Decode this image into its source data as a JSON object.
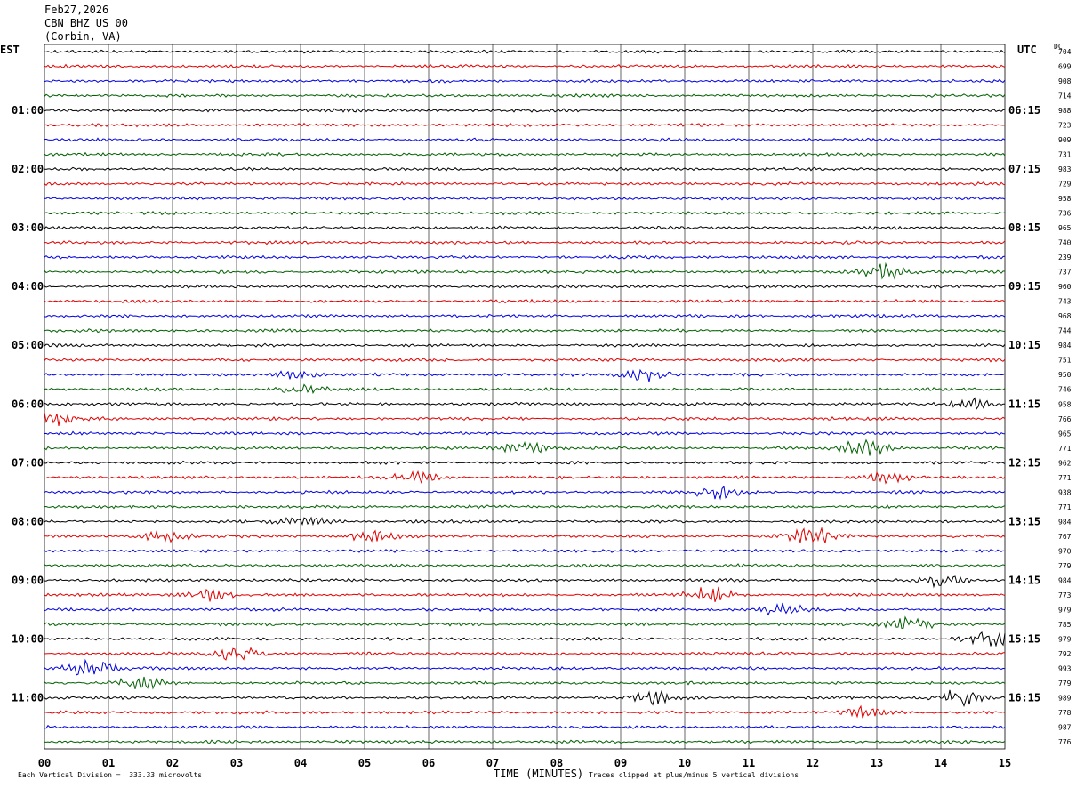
{
  "header": {
    "date": "Feb27,2026",
    "station": "CBN BHZ US 00",
    "location": "(Corbin, VA)"
  },
  "left_axis_label": "EST",
  "right_axis_label": "UTC",
  "dc_label": "DC",
  "footer": {
    "left_note": "Each Vertical Division =  333.33 microvolts",
    "xlabel": "TIME (MINUTES)",
    "right_note": "Traces clipped at plus/minus 5 vertical divisions"
  },
  "colors": {
    "trace_cycle": [
      "#000000",
      "#e00000",
      "#0000e0",
      "#006000"
    ],
    "grid": "#000000"
  },
  "chart_data": {
    "type": "line",
    "title": "",
    "xlabel": "TIME (MINUTES)",
    "xlim": [
      0,
      15
    ],
    "x_ticks": [
      "00",
      "01",
      "02",
      "03",
      "04",
      "05",
      "06",
      "07",
      "08",
      "09",
      "10",
      "11",
      "12",
      "13",
      "14",
      "15"
    ],
    "rows": 48,
    "minutes_per_row": 15,
    "left_hour_labels": [
      "01:00",
      "02:00",
      "03:00",
      "04:00",
      "05:00",
      "06:00",
      "07:00",
      "08:00",
      "09:00",
      "10:00",
      "11:00"
    ],
    "right_hour_labels": [
      "06:15",
      "07:15",
      "08:15",
      "09:15",
      "10:15",
      "11:15",
      "12:15",
      "13:15",
      "14:15",
      "15:15",
      "16:15"
    ],
    "dc_offsets": [
      "704",
      "699",
      "908",
      "714",
      "988",
      "723",
      "909",
      "731",
      "983",
      "729",
      "958",
      "736",
      "965",
      "740",
      "239",
      "737",
      "960",
      "743",
      "968",
      "744",
      "984",
      "751",
      "950",
      "746",
      "958",
      "766",
      "965",
      "771",
      "962",
      "771",
      "938",
      "771",
      "984",
      "767",
      "970",
      "779",
      "984",
      "773",
      "979",
      "785",
      "979",
      "792",
      "993",
      "779",
      "989",
      "778",
      "987",
      "776"
    ],
    "events": [
      {
        "row": 15,
        "minute": 13.1,
        "amp": 2.5
      },
      {
        "row": 22,
        "minute": 9.4,
        "amp": 2.2
      },
      {
        "row": 22,
        "minute": 3.9,
        "amp": 1.5
      },
      {
        "row": 23,
        "minute": 4.0,
        "amp": 1.6
      },
      {
        "row": 24,
        "minute": 14.5,
        "amp": 1.8
      },
      {
        "row": 25,
        "minute": 0.1,
        "amp": 2.2
      },
      {
        "row": 27,
        "minute": 12.8,
        "amp": 3.0
      },
      {
        "row": 27,
        "minute": 7.5,
        "amp": 2.0
      },
      {
        "row": 29,
        "minute": 5.8,
        "amp": 1.8
      },
      {
        "row": 29,
        "minute": 13.2,
        "amp": 1.8
      },
      {
        "row": 30,
        "minute": 10.5,
        "amp": 2.0
      },
      {
        "row": 32,
        "minute": 4.0,
        "amp": 1.8
      },
      {
        "row": 33,
        "minute": 12.0,
        "amp": 3.5
      },
      {
        "row": 33,
        "minute": 5.1,
        "amp": 2.0
      },
      {
        "row": 33,
        "minute": 1.9,
        "amp": 1.8
      },
      {
        "row": 36,
        "minute": 14.0,
        "amp": 1.8
      },
      {
        "row": 37,
        "minute": 10.4,
        "amp": 2.8
      },
      {
        "row": 37,
        "minute": 2.6,
        "amp": 2.0
      },
      {
        "row": 38,
        "minute": 11.5,
        "amp": 2.2
      },
      {
        "row": 39,
        "minute": 13.5,
        "amp": 2.6
      },
      {
        "row": 40,
        "minute": 14.8,
        "amp": 3.2
      },
      {
        "row": 41,
        "minute": 3.0,
        "amp": 3.0
      },
      {
        "row": 42,
        "minute": 0.7,
        "amp": 3.0
      },
      {
        "row": 43,
        "minute": 1.5,
        "amp": 2.0
      },
      {
        "row": 44,
        "minute": 14.3,
        "amp": 3.0
      },
      {
        "row": 44,
        "minute": 9.5,
        "amp": 2.2
      },
      {
        "row": 45,
        "minute": 12.8,
        "amp": 1.8
      }
    ]
  }
}
